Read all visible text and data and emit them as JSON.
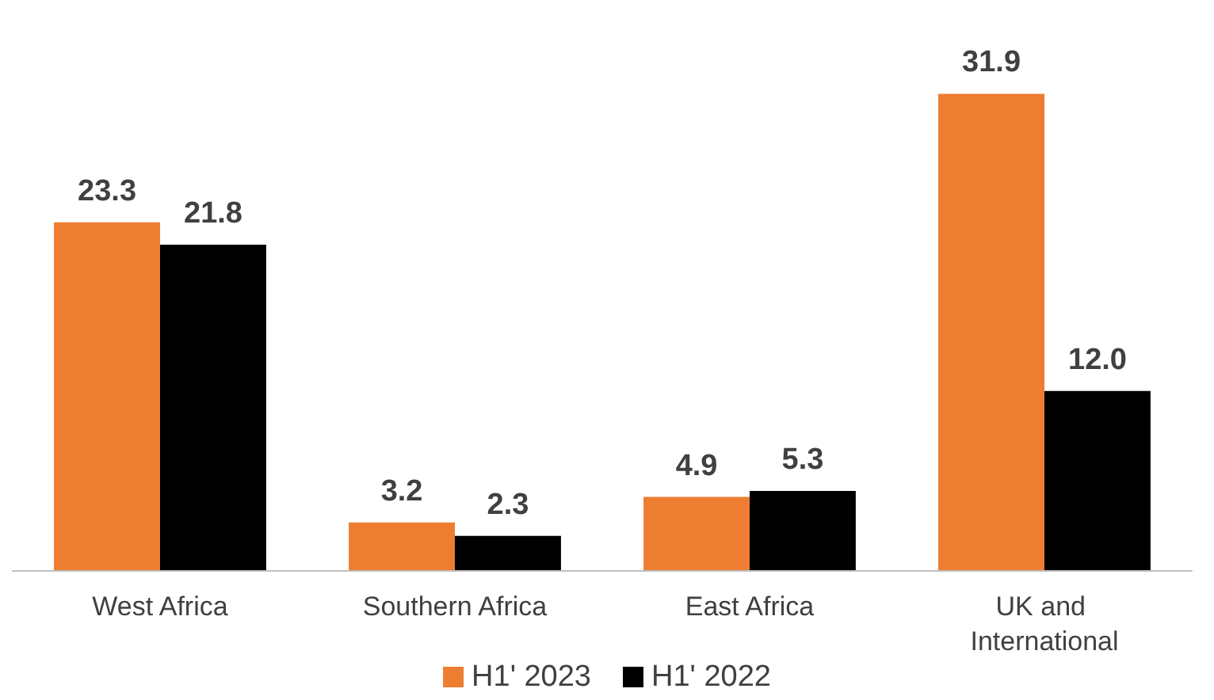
{
  "chart_data": {
    "type": "bar",
    "categories": [
      "West Africa",
      "Southern Africa",
      "East Africa",
      "UK and International"
    ],
    "series": [
      {
        "name": "H1' 2023",
        "color": "#ed7d31",
        "values": [
          23.3,
          3.2,
          4.9,
          31.9
        ],
        "value_labels": [
          "23.3",
          "3.2",
          "4.9",
          "31.9"
        ]
      },
      {
        "name": "H1' 2022",
        "color": "#000000",
        "values": [
          21.8,
          2.3,
          5.3,
          12.0
        ],
        "value_labels": [
          "21.8",
          "2.3",
          "5.3",
          "12.0"
        ]
      }
    ],
    "legend": "bottom"
  }
}
